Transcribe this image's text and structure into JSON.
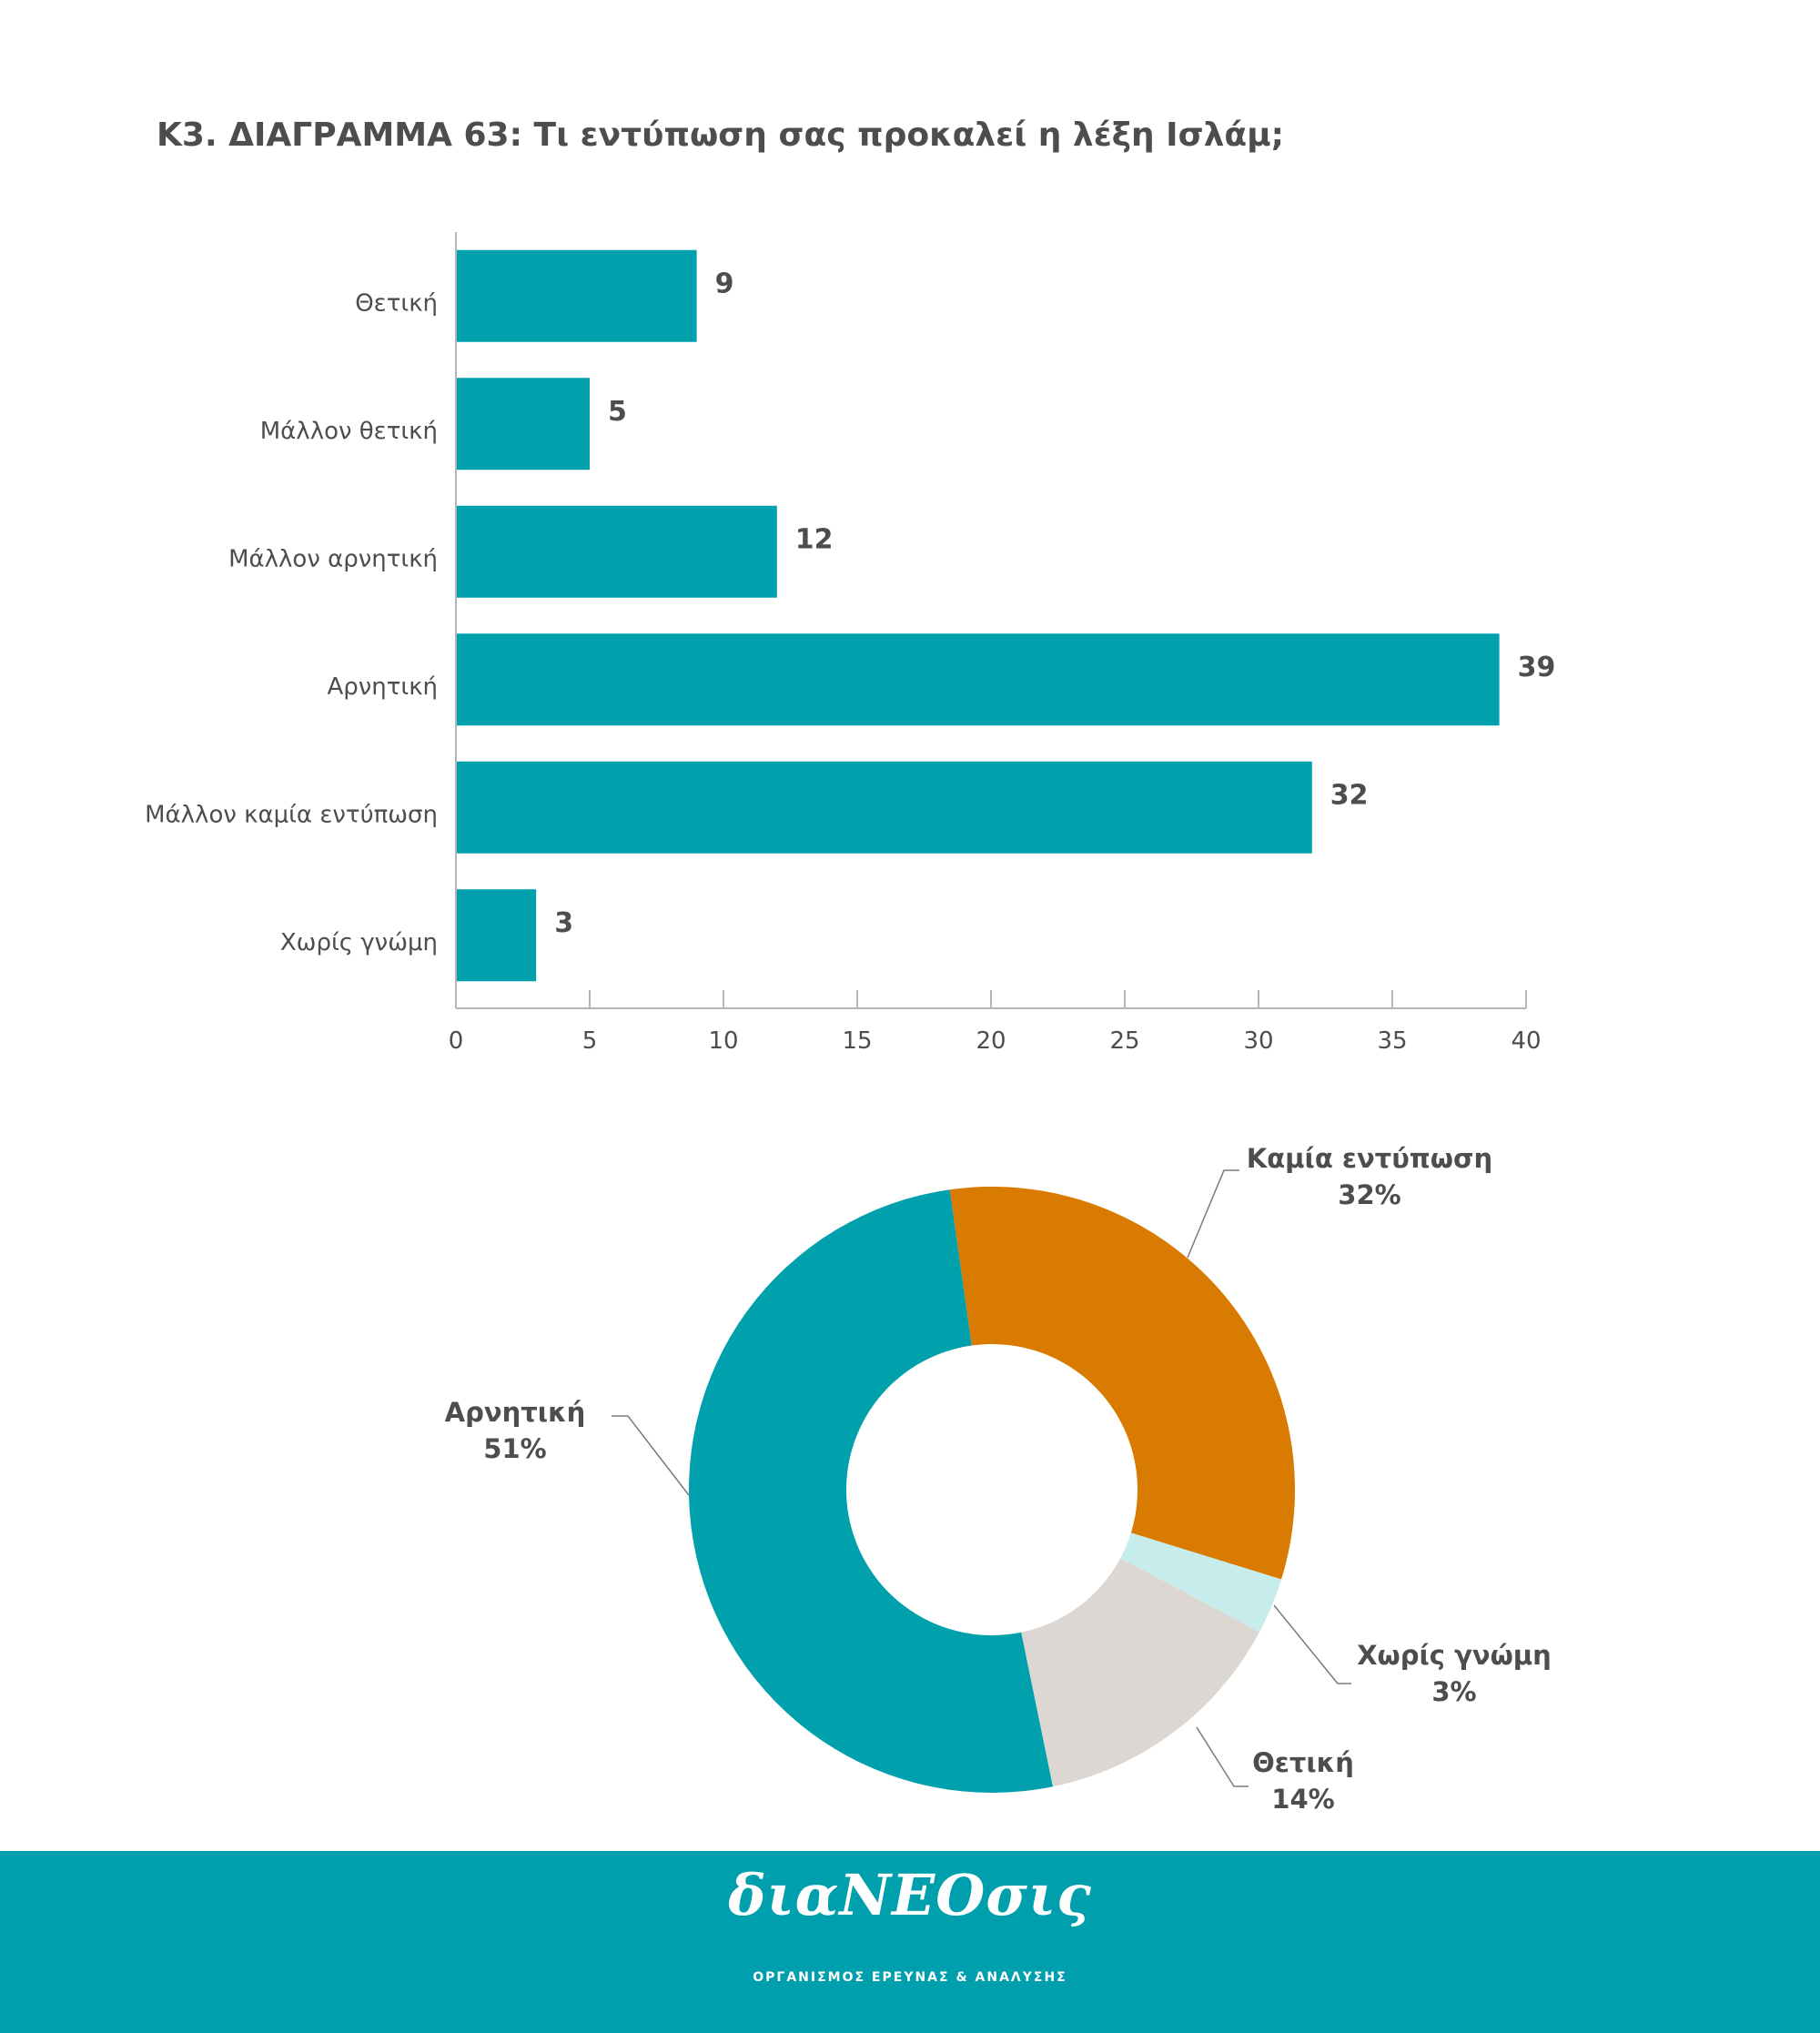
{
  "title": "Κ3. ΔΙΑΓΡΑΜΜΑ 63: Τι εντύπωση σας προκαλεί η λέξη Ισλάμ;",
  "chart_data": [
    {
      "type": "bar",
      "orientation": "horizontal",
      "categories": [
        "Θετική",
        "Μάλλον θετική",
        "Μάλλον αρνητική",
        "Αρνητική",
        "Μάλλον καμία εντύπωση",
        "Χωρίς γνώμη"
      ],
      "values": [
        9,
        5,
        12,
        39,
        32,
        3
      ],
      "xlim": [
        0,
        40
      ],
      "xticks": [
        0,
        5,
        10,
        15,
        20,
        25,
        30,
        35,
        40
      ],
      "grid": false,
      "color": "#00a0ad"
    },
    {
      "type": "pie",
      "style": "donut",
      "slices": [
        {
          "label": "Καμία εντύπωση",
          "value": 32,
          "value_label": "32%",
          "color": "#d97b00"
        },
        {
          "label": "Χωρίς γνώμη",
          "value": 3,
          "value_label": "3%",
          "color": "#c7ecec"
        },
        {
          "label": "Θετική",
          "value": 14,
          "value_label": "14%",
          "color": "#dcd7d2"
        },
        {
          "label": "Αρνητική",
          "value": 51,
          "value_label": "51%",
          "color": "#00a0ad"
        }
      ]
    }
  ],
  "footer": {
    "logo": "διαΝΕΟσις",
    "subtitle": "ΟΡΓΑΝΙΣΜΟΣ ΕΡΕΥΝΑΣ & ΑΝΑΛΥΣΗΣ",
    "background": "#009fad"
  }
}
